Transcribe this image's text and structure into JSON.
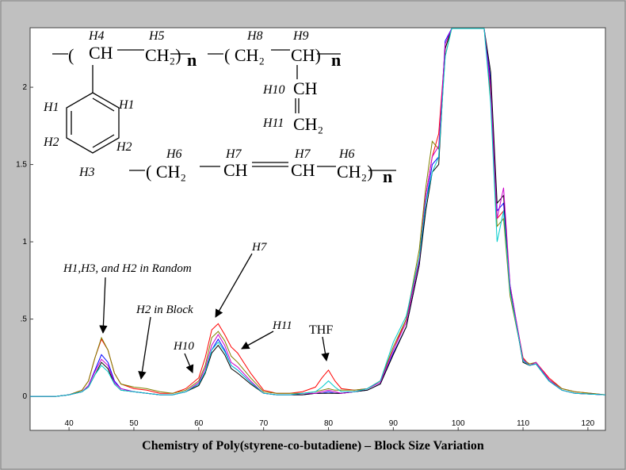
{
  "chart_data": {
    "type": "line",
    "x_label": "Chemistry of Poly(styrene-co-butadiene) – Block Size Variation",
    "xlim": [
      34,
      122.7
    ],
    "xticks": [
      40,
      50,
      60,
      70,
      80,
      90,
      100,
      110,
      120
    ],
    "ylim": [
      -0.22,
      2.385
    ],
    "yticks": [
      0,
      {
        "value": 0.5,
        "label": ".5"
      },
      1,
      1.5,
      2
    ],
    "x": [
      34,
      38,
      40,
      42,
      43,
      44,
      45,
      46,
      47,
      48,
      50,
      52,
      54,
      56,
      58,
      60,
      61,
      62,
      63,
      64,
      65,
      66,
      68,
      70,
      72,
      74,
      76,
      78,
      79,
      80,
      81,
      82,
      84,
      86,
      88,
      90,
      92,
      94,
      95,
      96,
      97,
      98,
      99,
      104,
      105,
      106,
      107,
      108,
      110,
      111,
      112,
      114,
      116,
      118,
      122.7
    ],
    "series": [
      {
        "color": "#ff0000",
        "values": [
          0,
          0,
          0.01,
          0.04,
          0.1,
          0.25,
          0.37,
          0.3,
          0.15,
          0.08,
          0.05,
          0.04,
          0.02,
          0.02,
          0.05,
          0.12,
          0.25,
          0.43,
          0.47,
          0.4,
          0.32,
          0.28,
          0.15,
          0.04,
          0.02,
          0.02,
          0.03,
          0.06,
          0.12,
          0.17,
          0.1,
          0.05,
          0.04,
          0.05,
          0.1,
          0.3,
          0.5,
          0.9,
          1.3,
          1.55,
          1.7,
          2.25,
          2.38,
          2.38,
          2.0,
          1.15,
          1.2,
          0.7,
          0.25,
          0.2,
          0.22,
          0.12,
          0.05,
          0.03,
          0.01
        ]
      },
      {
        "color": "#808000",
        "values": [
          0,
          0,
          0.01,
          0.04,
          0.1,
          0.25,
          0.38,
          0.3,
          0.15,
          0.08,
          0.06,
          0.05,
          0.03,
          0.02,
          0.04,
          0.1,
          0.2,
          0.38,
          0.42,
          0.36,
          0.26,
          0.22,
          0.12,
          0.03,
          0.02,
          0.02,
          0.02,
          0.03,
          0.04,
          0.05,
          0.04,
          0.04,
          0.04,
          0.05,
          0.1,
          0.32,
          0.5,
          0.95,
          1.35,
          1.65,
          1.6,
          2.2,
          2.38,
          2.38,
          1.95,
          1.1,
          1.15,
          0.65,
          0.24,
          0.21,
          0.22,
          0.11,
          0.05,
          0.03,
          0.01
        ]
      },
      {
        "color": "#0000ff",
        "values": [
          0,
          0,
          0.01,
          0.03,
          0.07,
          0.17,
          0.27,
          0.22,
          0.1,
          0.05,
          0.03,
          0.02,
          0.01,
          0.01,
          0.03,
          0.08,
          0.16,
          0.3,
          0.37,
          0.3,
          0.2,
          0.17,
          0.09,
          0.02,
          0.01,
          0.01,
          0.01,
          0.02,
          0.02,
          0.03,
          0.02,
          0.02,
          0.03,
          0.04,
          0.08,
          0.28,
          0.45,
          0.85,
          1.25,
          1.5,
          1.55,
          2.3,
          2.38,
          2.38,
          2.05,
          1.2,
          1.25,
          0.72,
          0.23,
          0.2,
          0.21,
          0.1,
          0.04,
          0.02,
          0.01
        ]
      },
      {
        "color": "#000000",
        "values": [
          0,
          0,
          0.01,
          0.03,
          0.06,
          0.14,
          0.22,
          0.18,
          0.08,
          0.04,
          0.03,
          0.02,
          0.01,
          0.01,
          0.03,
          0.07,
          0.15,
          0.28,
          0.33,
          0.27,
          0.18,
          0.15,
          0.08,
          0.02,
          0.01,
          0.01,
          0.01,
          0.02,
          0.02,
          0.02,
          0.02,
          0.02,
          0.03,
          0.04,
          0.08,
          0.27,
          0.45,
          0.85,
          1.2,
          1.45,
          1.5,
          2.25,
          2.38,
          2.38,
          2.1,
          1.25,
          1.3,
          0.7,
          0.22,
          0.2,
          0.21,
          0.1,
          0.04,
          0.02,
          0.01
        ]
      },
      {
        "color": "#cc00cc",
        "values": [
          0,
          0,
          0.01,
          0.03,
          0.07,
          0.16,
          0.24,
          0.2,
          0.09,
          0.05,
          0.03,
          0.02,
          0.01,
          0.01,
          0.03,
          0.09,
          0.18,
          0.33,
          0.4,
          0.33,
          0.22,
          0.19,
          0.1,
          0.02,
          0.01,
          0.01,
          0.02,
          0.02,
          0.03,
          0.04,
          0.03,
          0.02,
          0.03,
          0.05,
          0.09,
          0.3,
          0.48,
          0.88,
          1.3,
          1.55,
          1.62,
          2.28,
          2.38,
          2.38,
          2.0,
          1.15,
          1.35,
          0.72,
          0.24,
          0.2,
          0.22,
          0.11,
          0.04,
          0.02,
          0.01
        ]
      },
      {
        "color": "#00cccc",
        "values": [
          0,
          0,
          0.01,
          0.03,
          0.06,
          0.14,
          0.2,
          0.16,
          0.08,
          0.04,
          0.03,
          0.02,
          0.01,
          0.01,
          0.03,
          0.08,
          0.16,
          0.3,
          0.35,
          0.29,
          0.2,
          0.17,
          0.09,
          0.02,
          0.01,
          0.01,
          0.02,
          0.03,
          0.06,
          0.1,
          0.06,
          0.03,
          0.03,
          0.05,
          0.1,
          0.35,
          0.52,
          0.9,
          1.25,
          1.45,
          1.55,
          2.2,
          2.38,
          2.38,
          1.9,
          1.0,
          1.2,
          0.68,
          0.23,
          0.2,
          0.21,
          0.1,
          0.04,
          0.02,
          0.01
        ]
      }
    ],
    "annotations": [
      "H1,H3, and H2 in Random",
      "H2 in Block",
      "H10",
      "H7",
      "H11",
      "THF"
    ],
    "structure": {
      "labels": [
        "H4",
        "H5",
        "H8",
        "H9",
        "H10",
        "H11",
        "H1",
        "H1",
        "H2",
        "H2",
        "H3",
        "H6",
        "H7",
        "H7",
        "H6"
      ],
      "groups": [
        "(",
        "CH",
        "CH₂)",
        "n",
        "( CH₂",
        "CH)",
        "n",
        "CH",
        "CH₂",
        "( CH₂",
        "CH",
        "CH",
        "CH₂)",
        "n"
      ]
    }
  }
}
